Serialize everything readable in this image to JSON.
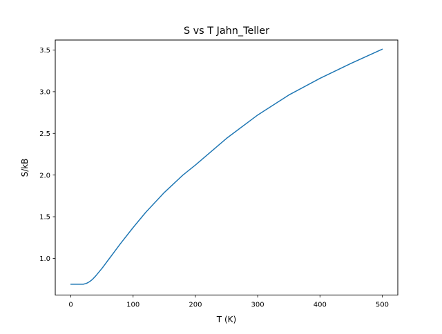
{
  "chart_data": {
    "type": "line",
    "title": "S vs T Jahn_Teller",
    "xlabel": "T (K)",
    "ylabel": "S/kB",
    "xlim": [
      -25,
      525
    ],
    "ylim": [
      0.56,
      3.62
    ],
    "xticks": [
      0,
      100,
      200,
      300,
      400,
      500
    ],
    "xtick_labels": [
      "0",
      "100",
      "200",
      "300",
      "400",
      "500"
    ],
    "yticks": [
      1.0,
      1.5,
      2.0,
      2.5,
      3.0,
      3.5
    ],
    "ytick_labels": [
      "1.0",
      "1.5",
      "2.0",
      "2.5",
      "3.0",
      "3.5"
    ],
    "grid": false,
    "series": [
      {
        "color": "#1f77b4",
        "x": [
          0,
          10,
          20,
          25,
          30,
          35,
          40,
          50,
          60,
          70,
          80,
          100,
          120,
          150,
          180,
          200,
          250,
          300,
          350,
          400,
          450,
          500
        ],
        "y": [
          0.69,
          0.69,
          0.69,
          0.7,
          0.72,
          0.75,
          0.79,
          0.88,
          0.98,
          1.08,
          1.18,
          1.37,
          1.55,
          1.79,
          2.0,
          2.12,
          2.44,
          2.72,
          2.96,
          3.16,
          3.34,
          3.51
        ]
      }
    ]
  }
}
